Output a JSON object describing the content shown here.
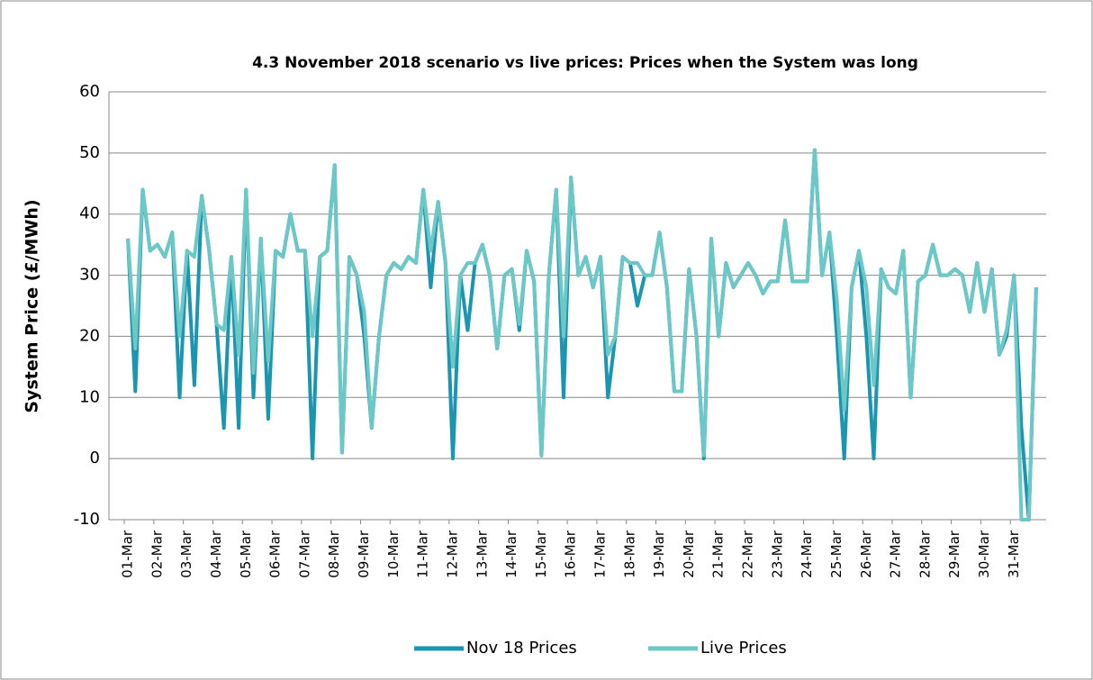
{
  "chart_data": {
    "type": "line",
    "title": "4.3 November 2018 scenario vs live prices: Prices when the System was long",
    "ylabel": "System Price (£/MWh)",
    "categories": [
      "01-Mar",
      null,
      null,
      null,
      "02-Mar",
      null,
      null,
      null,
      "03-Mar",
      null,
      null,
      null,
      "04-Mar",
      null,
      null,
      null,
      "05-Mar",
      null,
      null,
      null,
      "06-Mar",
      null,
      null,
      null,
      "07-Mar",
      null,
      null,
      null,
      "08-Mar",
      null,
      null,
      null,
      "09-Mar",
      null,
      null,
      null,
      "10-Mar",
      null,
      null,
      null,
      "11-Mar",
      null,
      null,
      null,
      "12-Mar",
      null,
      null,
      null,
      "13-Mar",
      null,
      null,
      null,
      "14-Mar",
      null,
      null,
      null,
      "15-Mar",
      null,
      null,
      null,
      "16-Mar",
      null,
      null,
      null,
      "17-Mar",
      null,
      null,
      null,
      "18-Mar",
      null,
      null,
      null,
      "19-Mar",
      null,
      null,
      null,
      "20-Mar",
      null,
      null,
      null,
      "21-Mar",
      null,
      null,
      null,
      "22-Mar",
      null,
      null,
      null,
      "23-Mar",
      null,
      null,
      null,
      "24-Mar",
      null,
      null,
      null,
      "25-Mar",
      null,
      null,
      null,
      "26-Mar",
      null,
      null,
      null,
      "27-Mar",
      null,
      null,
      null,
      "28-Mar",
      null,
      null,
      null,
      "29-Mar",
      null,
      null,
      null,
      "30-Mar",
      null,
      null,
      null,
      "31-Mar",
      null,
      null,
      null
    ],
    "series": [
      {
        "name": "Nov 18 Prices",
        "color": "#1b96b0",
        "values": [
          36,
          11,
          44,
          34,
          35,
          33,
          37,
          10,
          34,
          12,
          43,
          34,
          22,
          5,
          33,
          5,
          44,
          10,
          36,
          6.5,
          34,
          33,
          40,
          34,
          34,
          0,
          33,
          34,
          48,
          1,
          33,
          30,
          20,
          5,
          20,
          30,
          32,
          31,
          33,
          32,
          44,
          28,
          42,
          32,
          0,
          30,
          21,
          32,
          35,
          30,
          18,
          30,
          31,
          21,
          34,
          29,
          0.5,
          30,
          44,
          10,
          46,
          30,
          33,
          28,
          33,
          10,
          20,
          33,
          32,
          25,
          30,
          30,
          37,
          28,
          11,
          11,
          31,
          20,
          0,
          36,
          20,
          32,
          28,
          30,
          32,
          30,
          27,
          29,
          29,
          39,
          29,
          29,
          29,
          50.5,
          30,
          37,
          20,
          0,
          28,
          34,
          20,
          0,
          31,
          28,
          27,
          34,
          10,
          29,
          30,
          35,
          30,
          30,
          31,
          30,
          24,
          32,
          24,
          31,
          17,
          20,
          30,
          5,
          -10,
          28
        ]
      },
      {
        "name": "Live Prices",
        "color": "#6cc7c7",
        "values": [
          36,
          18,
          44,
          34,
          35,
          33,
          37,
          20,
          34,
          33,
          43,
          34,
          22,
          21,
          33,
          17,
          44,
          14,
          36,
          16,
          34,
          33,
          40,
          34,
          34,
          20,
          33,
          34,
          48,
          1,
          33,
          30,
          24,
          5,
          20,
          30,
          32,
          31,
          33,
          32,
          44,
          34,
          42,
          32,
          15,
          30,
          32,
          32,
          35,
          30,
          18,
          30,
          31,
          22,
          34,
          29,
          0.5,
          30,
          44,
          20,
          46,
          30,
          33,
          28,
          33,
          17,
          20,
          33,
          32,
          32,
          30,
          30,
          37,
          28,
          11,
          11,
          31,
          20,
          0.5,
          36,
          20,
          32,
          28,
          30,
          32,
          30,
          27,
          29,
          29,
          39,
          29,
          29,
          29,
          50.5,
          30,
          37,
          26,
          8,
          28,
          34,
          28,
          12,
          31,
          28,
          27,
          34,
          10,
          29,
          30,
          35,
          30,
          30,
          31,
          30,
          24,
          32,
          24,
          31,
          17,
          21,
          30,
          -10,
          -10,
          28
        ]
      }
    ],
    "ylim": [
      -10,
      60
    ],
    "yticks": [
      -10,
      0,
      10,
      20,
      30,
      40,
      50,
      60
    ],
    "grid": true,
    "legend": "bottom"
  }
}
